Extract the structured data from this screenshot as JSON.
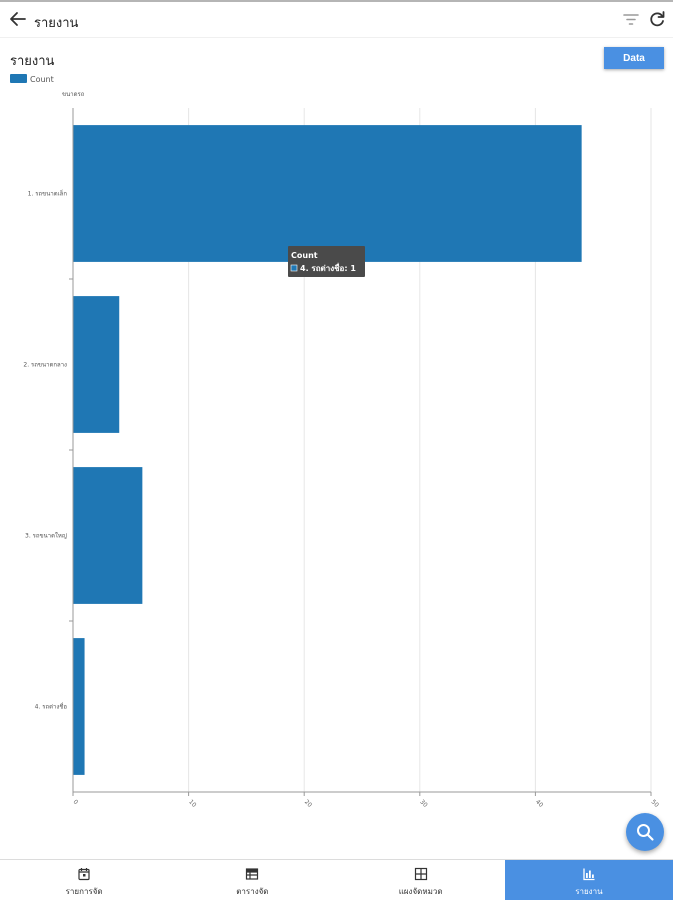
{
  "app_bar": {
    "title": "รายงาน",
    "back_icon": "arrow-left-icon",
    "filter_icon": "filter-icon",
    "refresh_icon": "refresh-icon"
  },
  "report": {
    "title": "รายงาน",
    "data_button_label": "Data"
  },
  "chart_data": {
    "type": "bar",
    "orientation": "horizontal",
    "title": "",
    "legend_position": "top-left",
    "ylabel": "ขนาดรถ",
    "xlabel": "",
    "categories": [
      "1. รถขนาดเล็ก",
      "2. รถขนาดกลาง",
      "3. รถขนาดใหญ่",
      "4. รถต่างชื่อ"
    ],
    "series": [
      {
        "name": "Count",
        "values": [
          44,
          4,
          6,
          1
        ],
        "color": "#1f77b4"
      }
    ],
    "x_ticks": [
      "0",
      "10",
      "20",
      "30",
      "40",
      "50"
    ],
    "xlim": [
      0,
      50
    ],
    "grid": true,
    "tooltip": {
      "title": "Count",
      "text": "4. รถต่างชื่อ: 1"
    }
  },
  "fab": {
    "icon": "search-icon"
  },
  "bottom_nav": {
    "items": [
      {
        "label": "รายการจัด",
        "icon": "calendar-icon",
        "active": false
      },
      {
        "label": "ตารางจัด",
        "icon": "table-icon",
        "active": false
      },
      {
        "label": "แผงจัดหมวด",
        "icon": "grid-icon",
        "active": false
      },
      {
        "label": "รายงาน",
        "icon": "bar-chart-icon",
        "active": true
      }
    ]
  },
  "colors": {
    "accent": "#4a90e2",
    "bar": "#1f77b4",
    "tooltip_bg": "#4a4a4a"
  }
}
